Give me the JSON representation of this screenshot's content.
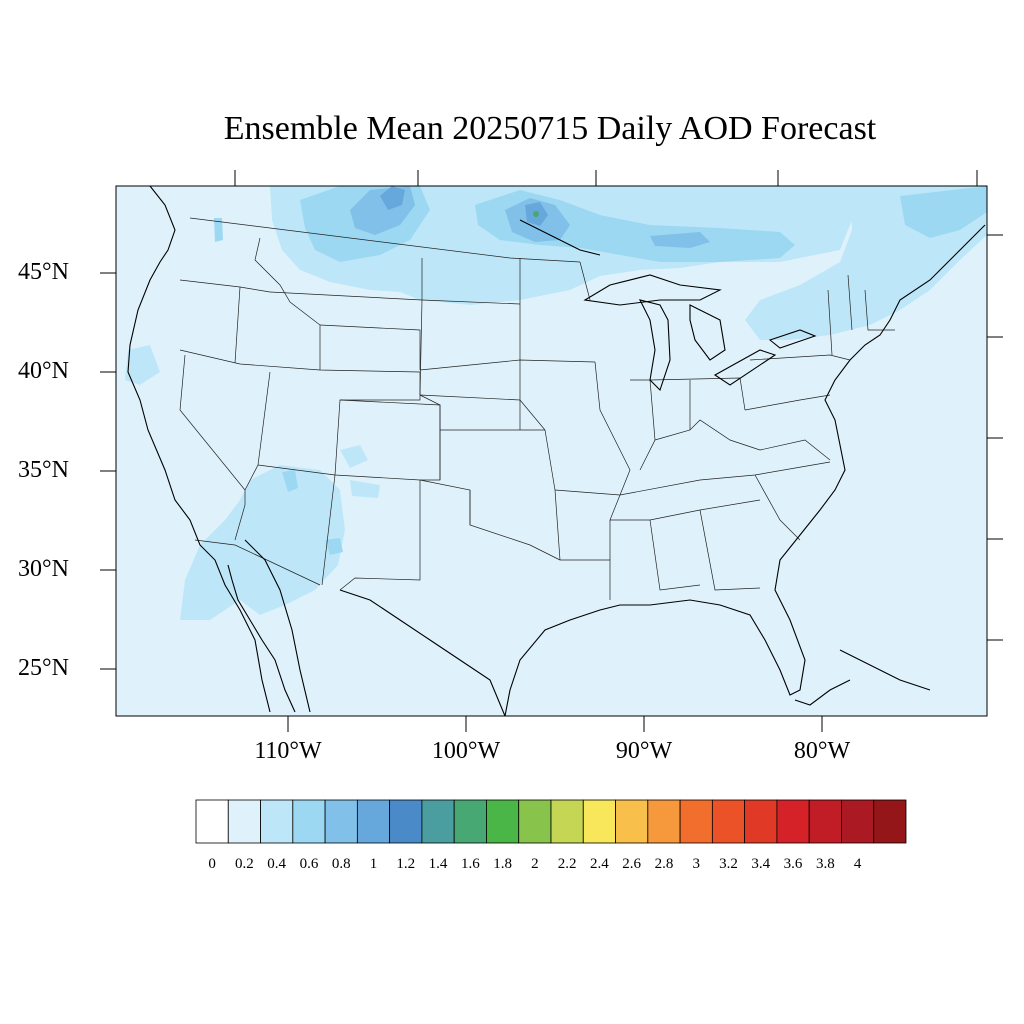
{
  "title": "Ensemble Mean 20250715 Daily AOD Forecast",
  "lat_labels": [
    "45°N",
    "40°N",
    "35°N",
    "30°N",
    "25°N"
  ],
  "lon_labels": [
    "110°W",
    "100°W",
    "90°W",
    "80°W"
  ],
  "colorbar": {
    "colors": [
      "#ffffff",
      "#dff2fb",
      "#bde7f8",
      "#9dd8f2",
      "#81c0e8",
      "#67a8dc",
      "#4b8ac9",
      "#4b9ea0",
      "#47a874",
      "#4bb648",
      "#88c44c",
      "#c4d653",
      "#f8e75b",
      "#f8bf4a",
      "#f6993c",
      "#f26e2c",
      "#ec5228",
      "#e03a26",
      "#d52229",
      "#c01d27",
      "#ab1a23",
      "#941619"
    ],
    "labels": [
      "0",
      "0.2",
      "0.4",
      "0.6",
      "0.8",
      "1",
      "1.2",
      "1.4",
      "1.6",
      "1.8",
      "2",
      "2.2",
      "2.4",
      "2.6",
      "2.8",
      "3",
      "3.2",
      "3.4",
      "3.6",
      "3.8",
      "4"
    ]
  },
  "map": {
    "background_fill": "#dff2fb",
    "level2_fill": "#bde7f8",
    "level3_fill": "#9dd8f2",
    "level4_fill": "#81c0e8",
    "level5_fill": "#67a8dc",
    "level7_fill": "#47a874"
  }
}
